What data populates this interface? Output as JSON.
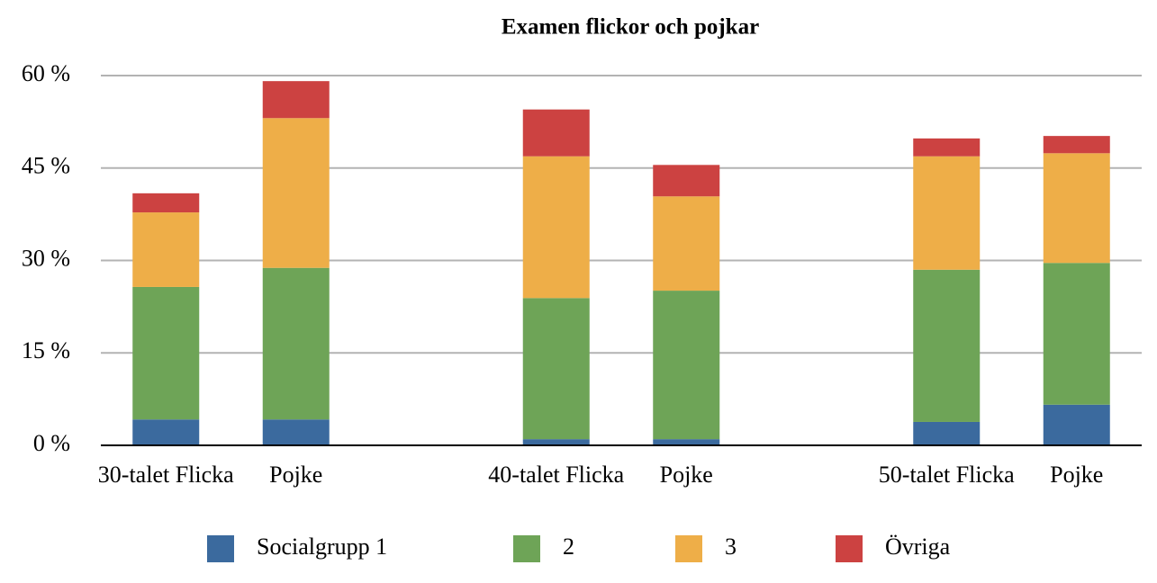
{
  "chart_data": {
    "type": "stacked_bar",
    "title": "Examen flickor och pojkar",
    "categories": [
      "30-talet Flicka",
      "Pojke",
      null,
      "40-talet Flicka",
      "Pojke",
      null,
      "50-talet Flicka",
      "Pojke"
    ],
    "series": [
      {
        "name": "Socialgrupp 1",
        "color": "#3b6a9e",
        "values": [
          4.2,
          4.2,
          null,
          1.0,
          1.0,
          null,
          3.8,
          6.6
        ]
      },
      {
        "name": "2",
        "color": "#6ea457",
        "values": [
          21.5,
          24.6,
          null,
          22.9,
          24.1,
          null,
          24.7,
          23.0
        ]
      },
      {
        "name": "3",
        "color": "#eeae48",
        "values": [
          12.1,
          24.3,
          null,
          23.0,
          15.3,
          null,
          18.4,
          17.8
        ]
      },
      {
        "name": "Övriga",
        "color": "#cc4241",
        "values": [
          3.1,
          6.0,
          null,
          7.6,
          5.1,
          null,
          2.9,
          2.8
        ]
      }
    ],
    "ylim": [
      0,
      60
    ],
    "yticks": [
      {
        "value": 0,
        "label": "0 %"
      },
      {
        "value": 15,
        "label": "15 %"
      },
      {
        "value": 30,
        "label": "30 %"
      },
      {
        "value": 45,
        "label": "45 %"
      },
      {
        "value": 60,
        "label": "60 %"
      }
    ],
    "grid": true,
    "legend": "bottom"
  }
}
